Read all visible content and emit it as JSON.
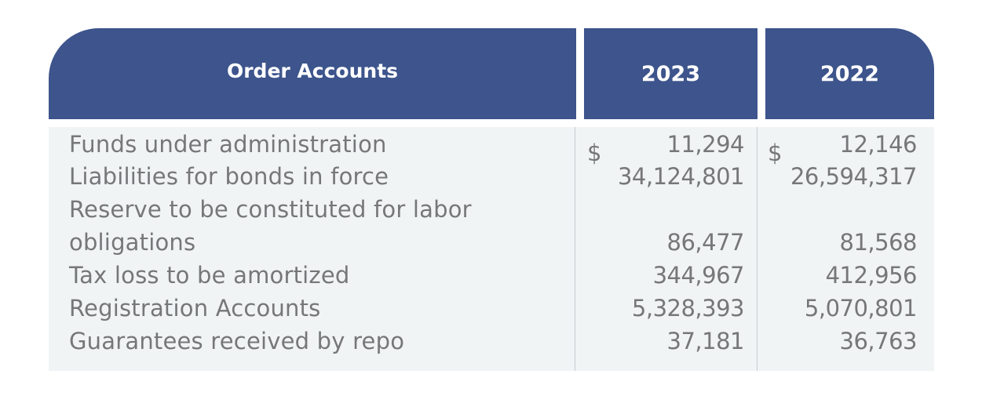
{
  "table": {
    "header": {
      "label": "Order Accounts",
      "year_1": "2023",
      "year_2": "2022"
    },
    "currency_symbol": "$",
    "rows": [
      {
        "label": "Funds under administration",
        "v2023": "11,294",
        "v2022": "12,146"
      },
      {
        "label": "Liabilities for bonds in force",
        "v2023": "34,124,801",
        "v2022": "26,594,317"
      },
      {
        "label": "Reserve to be constituted for labor",
        "v2023": "",
        "v2022": ""
      },
      {
        "label": "obligations",
        "v2023": "86,477",
        "v2022": "81,568"
      },
      {
        "label": "Tax loss to be amortized",
        "v2023": "344,967",
        "v2022": "412,956"
      },
      {
        "label": "Registration Accounts",
        "v2023": "5,328,393",
        "v2022": "5,070,801"
      },
      {
        "label": "Guarantees received by repo",
        "v2023": "37,181",
        "v2022": "36,763"
      }
    ]
  },
  "colors": {
    "header_bg": "#3d548c",
    "header_text": "#ffffff",
    "body_bg": "#f1f4f5",
    "body_text": "#757779"
  }
}
